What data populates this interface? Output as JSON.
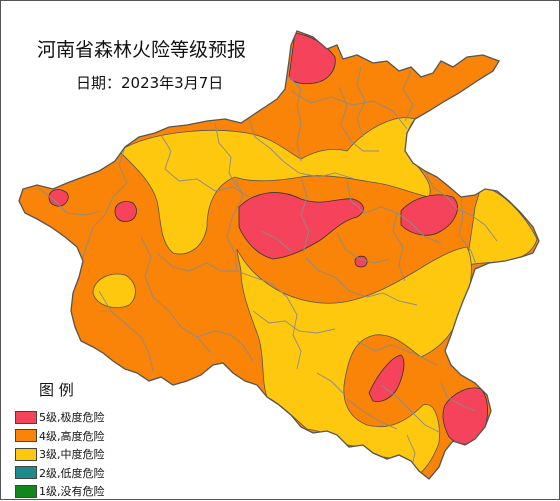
{
  "map": {
    "title": "河南省森林火险等级预报",
    "date": "日期：2023年3月7日",
    "colors": {
      "level5": "#f4435a",
      "level4": "#f98407",
      "level3": "#fec80f",
      "level2": "#1e8a8a",
      "level1": "#11861a",
      "boundary": "#8b8b8b"
    }
  },
  "legend": {
    "title": "图  例",
    "items": [
      {
        "label": "5级,极度危险",
        "color": "#f4435a"
      },
      {
        "label": "4级,高度危险",
        "color": "#f98407"
      },
      {
        "label": "3级,中度危险",
        "color": "#fec80f"
      },
      {
        "label": "2级,低度危险",
        "color": "#1e8a8a"
      },
      {
        "label": "1级,没有危险",
        "color": "#11861a"
      }
    ]
  }
}
